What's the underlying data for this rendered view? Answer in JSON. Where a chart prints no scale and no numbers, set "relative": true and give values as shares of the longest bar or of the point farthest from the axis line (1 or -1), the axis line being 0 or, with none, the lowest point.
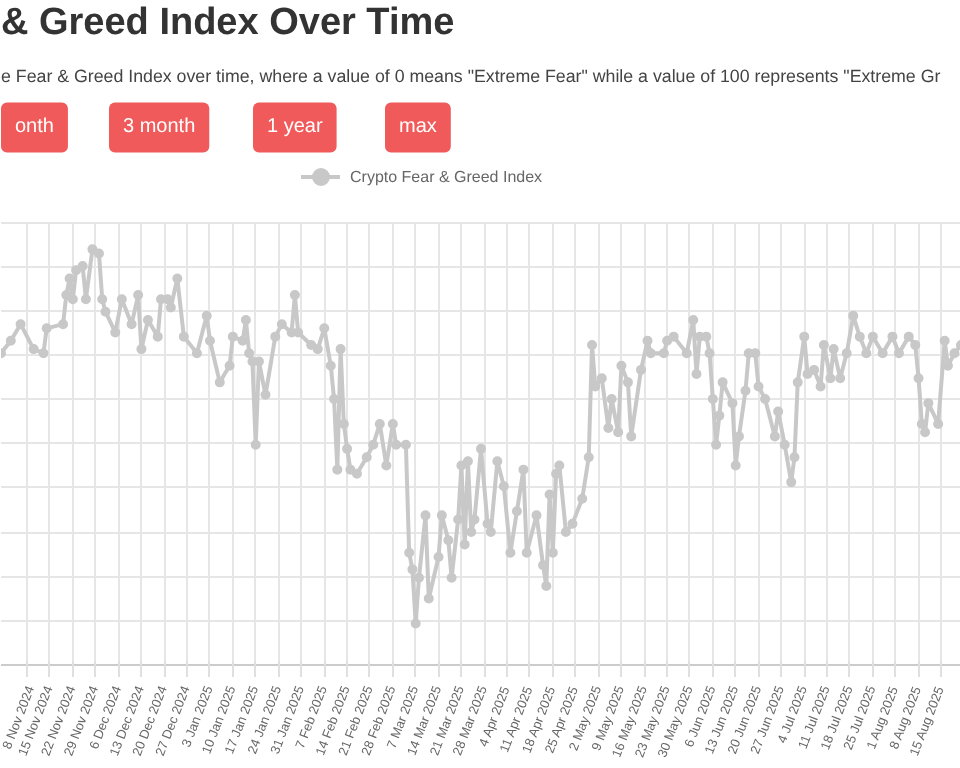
{
  "chart_data": {
    "type": "line",
    "title": "& Greed Index Over Time",
    "subtitle": "e Fear & Greed Index over time, where a value of 0 means \"Extreme Fear\" while a value of 100 represents \"Extreme Gr",
    "annotations": [
      "onth",
      "3 month",
      "1 year",
      "max"
    ],
    "relative": true,
    "legend": "top",
    "grid": true,
    "tick_labels": "x",
    "marker": "circle",
    "line_style": "solid",
    "xlim": [
      "2024-10-31",
      "2025-08-21"
    ],
    "xticks": [
      {
        "value": "2024-11-08",
        "label": "8 Nov 2024"
      },
      {
        "value": "2024-11-15",
        "label": "15 Nov 2024"
      },
      {
        "value": "2024-11-22",
        "label": "22 Nov 2024"
      },
      {
        "value": "2024-11-29",
        "label": "29 Nov 2024"
      },
      {
        "value": "2024-12-06",
        "label": "6 Dec 2024"
      },
      {
        "value": "2024-12-13",
        "label": "13 Dec 2024"
      },
      {
        "value": "2024-12-20",
        "label": "20 Dec 2024"
      },
      {
        "value": "2024-12-27",
        "label": "27 Dec 2024"
      },
      {
        "value": "2025-01-03",
        "label": "3 Jan 2025"
      },
      {
        "value": "2025-01-10",
        "label": "10 Jan 2025"
      },
      {
        "value": "2025-01-17",
        "label": "17 Jan 2025"
      },
      {
        "value": "2025-01-24",
        "label": "24 Jan 2025"
      },
      {
        "value": "2025-01-31",
        "label": "31 Jan 2025"
      },
      {
        "value": "2025-02-07",
        "label": "7 Feb 2025"
      },
      {
        "value": "2025-02-14",
        "label": "14 Feb 2025"
      },
      {
        "value": "2025-02-21",
        "label": "21 Feb 2025"
      },
      {
        "value": "2025-02-28",
        "label": "28 Feb 2025"
      },
      {
        "value": "2025-03-07",
        "label": "7 Mar 2025"
      },
      {
        "value": "2025-03-14",
        "label": "14 Mar 2025"
      },
      {
        "value": "2025-03-21",
        "label": "21 Mar 2025"
      },
      {
        "value": "2025-03-28",
        "label": "28 Mar 2025"
      },
      {
        "value": "2025-04-04",
        "label": "4 Apr 2025"
      },
      {
        "value": "2025-04-11",
        "label": "11 Apr 2025"
      },
      {
        "value": "2025-04-18",
        "label": "18 Apr 2025"
      },
      {
        "value": "2025-04-25",
        "label": "25 Apr 2025"
      },
      {
        "value": "2025-05-02",
        "label": "2 May 2025"
      },
      {
        "value": "2025-05-09",
        "label": "9 May 2025"
      },
      {
        "value": "2025-05-16",
        "label": "16 May 2025"
      },
      {
        "value": "2025-05-23",
        "label": "23 May 2025"
      },
      {
        "value": "2025-05-30",
        "label": "30 May 2025"
      },
      {
        "value": "2025-06-06",
        "label": "6 Jun 2025"
      },
      {
        "value": "2025-06-13",
        "label": "13 Jun 2025"
      },
      {
        "value": "2025-06-20",
        "label": "20 Jun 2025"
      },
      {
        "value": "2025-06-27",
        "label": "27 Jun 2025"
      },
      {
        "value": "2025-07-04",
        "label": "4 Jul 2025"
      },
      {
        "value": "2025-07-11",
        "label": "11 Jul 2025"
      },
      {
        "value": "2025-07-18",
        "label": "18 Jul 2025"
      },
      {
        "value": "2025-07-25",
        "label": "25 Jul 2025"
      },
      {
        "value": "2025-08-01",
        "label": "1 Aug 2025"
      },
      {
        "value": "2025-08-08",
        "label": "8 Aug 2025"
      },
      {
        "value": "2025-08-15",
        "label": "15 Aug 2025"
      }
    ],
    "series": [
      {
        "name": "Crypto Fear & Greed Index",
        "color": "#c8c8c8",
        "x": [
          "2024-10-31",
          "2024-11-03",
          "2024-11-06",
          "2024-11-10",
          "2024-11-13",
          "2024-11-14",
          "2024-11-19",
          "2024-11-20",
          "2024-11-21",
          "2024-11-22",
          "2024-11-23",
          "2024-11-25",
          "2024-11-26",
          "2024-11-28",
          "2024-11-30",
          "2024-12-01",
          "2024-12-02",
          "2024-12-05",
          "2024-12-07",
          "2024-12-10",
          "2024-12-12",
          "2024-12-13",
          "2024-12-15",
          "2024-12-18",
          "2024-12-19",
          "2024-12-21",
          "2024-12-22",
          "2024-12-24",
          "2024-12-26",
          "2024-12-30",
          "2025-01-02",
          "2025-01-03",
          "2025-01-06",
          "2025-01-09",
          "2025-01-10",
          "2025-01-13",
          "2025-01-14",
          "2025-01-15",
          "2025-01-16",
          "2025-01-17",
          "2025-01-18",
          "2025-01-20",
          "2025-01-23",
          "2025-01-25",
          "2025-01-28",
          "2025-01-29",
          "2025-01-30",
          "2025-02-03",
          "2025-02-05",
          "2025-02-07",
          "2025-02-09",
          "2025-02-10",
          "2025-02-11",
          "2025-02-12",
          "2025-02-13",
          "2025-02-14",
          "2025-02-15",
          "2025-02-17",
          "2025-02-20",
          "2025-02-22",
          "2025-02-24",
          "2025-02-26",
          "2025-02-28",
          "2025-03-01",
          "2025-03-04",
          "2025-03-05",
          "2025-03-06",
          "2025-03-07",
          "2025-03-08",
          "2025-03-10",
          "2025-03-11",
          "2025-03-14",
          "2025-03-15",
          "2025-03-17",
          "2025-03-18",
          "2025-03-20",
          "2025-03-21",
          "2025-03-22",
          "2025-03-23",
          "2025-03-24",
          "2025-03-25",
          "2025-03-27",
          "2025-03-29",
          "2025-03-30",
          "2025-04-01",
          "2025-04-03",
          "2025-04-05",
          "2025-04-07",
          "2025-04-09",
          "2025-04-10",
          "2025-04-13",
          "2025-04-15",
          "2025-04-16",
          "2025-04-17",
          "2025-04-18",
          "2025-04-19",
          "2025-04-20",
          "2025-04-22",
          "2025-04-24",
          "2025-04-27",
          "2025-04-29",
          "2025-04-30",
          "2025-05-01",
          "2025-05-03",
          "2025-05-05",
          "2025-05-06",
          "2025-05-08",
          "2025-05-09",
          "2025-05-11",
          "2025-05-12",
          "2025-05-15",
          "2025-05-17",
          "2025-05-18",
          "2025-05-22",
          "2025-05-23",
          "2025-05-25",
          "2025-05-29",
          "2025-05-31",
          "2025-06-01",
          "2025-06-02",
          "2025-06-04",
          "2025-06-05",
          "2025-06-06",
          "2025-06-07",
          "2025-06-08",
          "2025-06-09",
          "2025-06-12",
          "2025-06-13",
          "2025-06-14",
          "2025-06-16",
          "2025-06-17",
          "2025-06-19",
          "2025-06-20",
          "2025-06-22",
          "2025-06-25",
          "2025-06-26",
          "2025-06-28",
          "2025-06-30",
          "2025-07-01",
          "2025-07-02",
          "2025-07-04",
          "2025-07-05",
          "2025-07-07",
          "2025-07-09",
          "2025-07-10",
          "2025-07-12",
          "2025-07-13",
          "2025-07-15",
          "2025-07-17",
          "2025-07-19",
          "2025-07-21",
          "2025-07-23",
          "2025-07-25",
          "2025-07-28",
          "2025-07-31",
          "2025-08-02",
          "2025-08-05",
          "2025-08-07",
          "2025-08-08",
          "2025-08-09",
          "2025-08-10",
          "2025-08-11",
          "2025-08-14",
          "2025-08-16",
          "2025-08-17",
          "2025-08-19",
          "2025-08-21"
        ],
        "values": [
          0.75,
          0.78,
          0.82,
          0.76,
          0.75,
          0.81,
          0.82,
          0.89,
          0.93,
          0.88,
          0.95,
          0.96,
          0.88,
          1.0,
          0.99,
          0.88,
          0.85,
          0.8,
          0.88,
          0.82,
          0.89,
          0.76,
          0.83,
          0.79,
          0.88,
          0.88,
          0.86,
          0.93,
          0.79,
          0.75,
          0.84,
          0.78,
          0.68,
          0.72,
          0.79,
          0.78,
          0.83,
          0.75,
          0.73,
          0.53,
          0.73,
          0.65,
          0.79,
          0.82,
          0.8,
          0.89,
          0.8,
          0.77,
          0.76,
          0.81,
          0.72,
          0.64,
          0.47,
          0.76,
          0.58,
          0.52,
          0.47,
          0.46,
          0.5,
          0.53,
          0.58,
          0.48,
          0.58,
          0.53,
          0.53,
          0.27,
          0.23,
          0.1,
          0.21,
          0.36,
          0.16,
          0.26,
          0.36,
          0.3,
          0.21,
          0.35,
          0.48,
          0.29,
          0.49,
          0.32,
          0.35,
          0.52,
          0.34,
          0.32,
          0.49,
          0.43,
          0.27,
          0.37,
          0.47,
          0.27,
          0.36,
          0.24,
          0.19,
          0.41,
          0.27,
          0.46,
          0.48,
          0.32,
          0.34,
          0.4,
          0.5,
          0.77,
          0.67,
          0.69,
          0.57,
          0.64,
          0.56,
          0.72,
          0.68,
          0.55,
          0.71,
          0.78,
          0.75,
          0.75,
          0.78,
          0.79,
          0.75,
          0.83,
          0.7,
          0.79,
          0.79,
          0.75,
          0.64,
          0.53,
          0.6,
          0.68,
          0.63,
          0.48,
          0.55,
          0.66,
          0.75,
          0.75,
          0.67,
          0.64,
          0.55,
          0.61,
          0.53,
          0.44,
          0.5,
          0.68,
          0.79,
          0.7,
          0.71,
          0.67,
          0.77,
          0.69,
          0.76,
          0.69,
          0.75,
          0.84,
          0.79,
          0.75,
          0.79,
          0.75,
          0.79,
          0.75,
          0.79,
          0.77,
          0.69,
          0.58,
          0.56,
          0.63,
          0.58,
          0.78,
          0.72,
          0.75,
          0.77
        ]
      }
    ]
  }
}
